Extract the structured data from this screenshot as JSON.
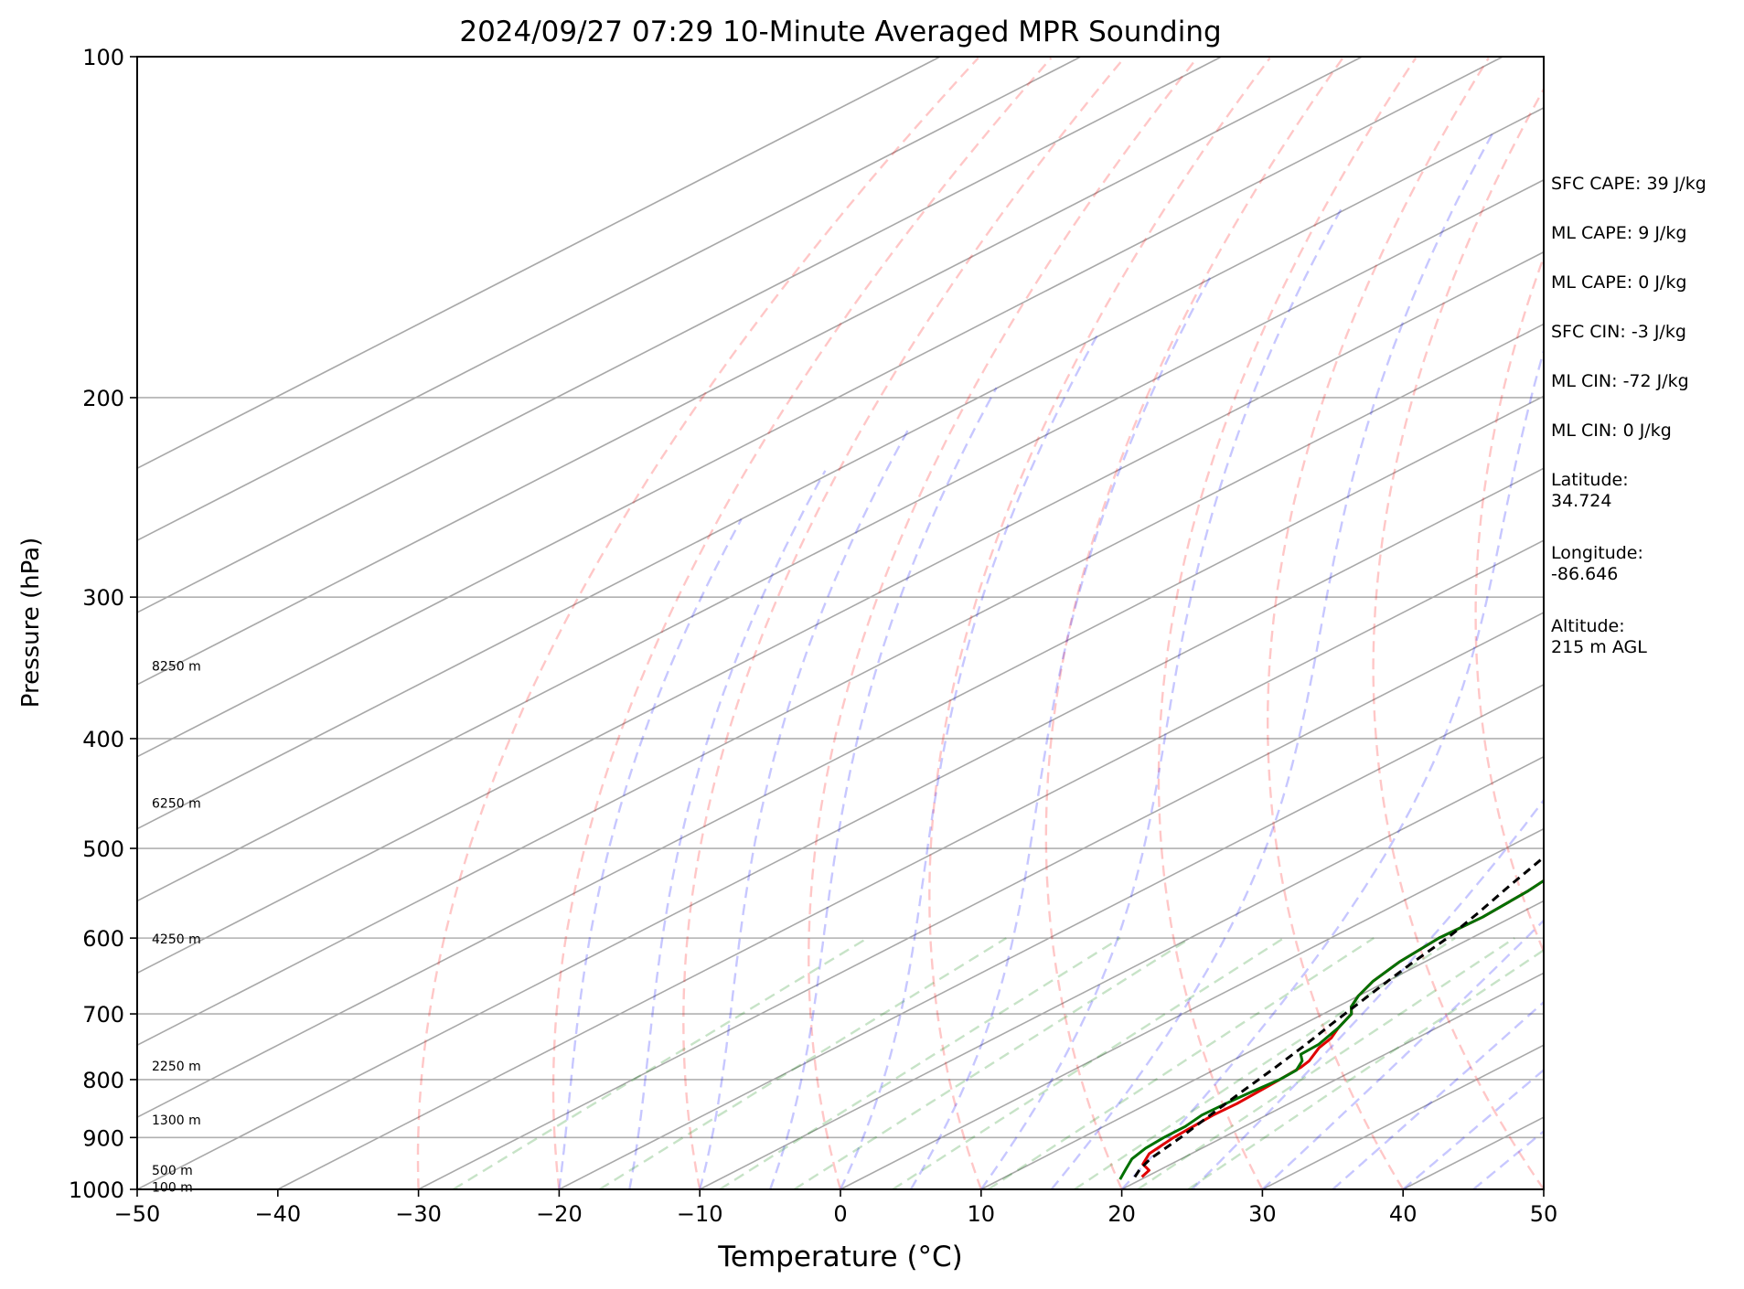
{
  "chart_data": {
    "type": "line",
    "subtype": "skew-t log-p sounding",
    "title": "2024/09/27 07:29 10-Minute Averaged MPR Sounding",
    "xlabel": "Temperature (°C)",
    "ylabel": "Pressure (hPa)",
    "xlim": [
      -50,
      50
    ],
    "ylim": [
      1000,
      100
    ],
    "y_scale": "log",
    "x_ticks": [
      -50,
      -40,
      -30,
      -20,
      -10,
      0,
      10,
      20,
      30,
      40,
      50
    ],
    "x_tick_labels": [
      "−50",
      "−40",
      "−30",
      "−20",
      "−10",
      "0",
      "10",
      "20",
      "30",
      "40",
      "50"
    ],
    "y_ticks": [
      1000,
      900,
      800,
      700,
      600,
      500,
      400,
      300,
      200,
      100
    ],
    "y_tick_labels": [
      "1000",
      "900",
      "800",
      "700",
      "600",
      "500",
      "400",
      "300",
      "200",
      "100"
    ],
    "height_labels": [
      {
        "p": 995,
        "label": "100 m"
      },
      {
        "p": 962,
        "label": "500 m"
      },
      {
        "p": 868,
        "label": "1300 m"
      },
      {
        "p": 778,
        "label": "2250 m"
      },
      {
        "p": 601,
        "label": "4250 m"
      },
      {
        "p": 456,
        "label": "6250 m"
      },
      {
        "p": 345,
        "label": "8250 m"
      }
    ],
    "series": [
      {
        "role": "temperature",
        "color": "#e00000",
        "points": [
          [
            19.7,
            975
          ],
          [
            19.3,
            962
          ],
          [
            18.0,
            950
          ],
          [
            17.0,
            930
          ],
          [
            16.5,
            900
          ],
          [
            16.2,
            860
          ],
          [
            16.3,
            840
          ],
          [
            16.1,
            810
          ],
          [
            15.8,
            780
          ],
          [
            15.5,
            770
          ],
          [
            14.4,
            750
          ],
          [
            13.9,
            735
          ],
          [
            13.0,
            720
          ],
          [
            12.0,
            700
          ],
          [
            11.0,
            690
          ],
          [
            10.0,
            675
          ],
          [
            9.0,
            655
          ],
          [
            8.2,
            630
          ],
          [
            7.7,
            600
          ],
          [
            7.9,
            575
          ],
          [
            7.5,
            545
          ],
          [
            6.8,
            520
          ],
          [
            6.4,
            500
          ],
          [
            6.0,
            490
          ],
          [
            5.3,
            480
          ],
          [
            5.0,
            470
          ],
          [
            4.5,
            460
          ],
          [
            4.0,
            450
          ],
          [
            2.8,
            430
          ],
          [
            1.8,
            415
          ],
          [
            1.0,
            400
          ],
          [
            0.3,
            385
          ],
          [
            -0.5,
            370
          ],
          [
            -2.0,
            360
          ],
          [
            -3.5,
            350
          ],
          [
            -4.6,
            340
          ],
          [
            -5.8,
            330
          ],
          [
            -7.3,
            320
          ],
          [
            -8.5,
            310
          ],
          [
            -9.7,
            300
          ],
          [
            -11.0,
            290
          ],
          [
            -12.2,
            282
          ],
          [
            -13.2,
            274
          ]
        ]
      },
      {
        "role": "dewpoint",
        "color": "#007000",
        "points": [
          [
            18.5,
            980
          ],
          [
            18.0,
            970
          ],
          [
            17.5,
            960
          ],
          [
            16.5,
            940
          ],
          [
            16.0,
            920
          ],
          [
            15.8,
            900
          ],
          [
            15.8,
            880
          ],
          [
            15.4,
            860
          ],
          [
            15.5,
            840
          ],
          [
            15.7,
            820
          ],
          [
            16.0,
            800
          ],
          [
            15.9,
            785
          ],
          [
            15.0,
            770
          ],
          [
            14.0,
            760
          ],
          [
            13.9,
            745
          ],
          [
            13.0,
            720
          ],
          [
            12.0,
            700
          ],
          [
            11.0,
            690
          ],
          [
            10.0,
            675
          ],
          [
            9.0,
            655
          ],
          [
            8.2,
            630
          ],
          [
            7.7,
            600
          ],
          [
            7.9,
            575
          ],
          [
            7.5,
            545
          ],
          [
            6.8,
            520
          ],
          [
            6.4,
            500
          ],
          [
            6.0,
            490
          ],
          [
            4.9,
            480
          ],
          [
            4.0,
            468
          ],
          [
            3.5,
            460
          ],
          [
            2.0,
            450
          ],
          [
            0.5,
            430
          ],
          [
            -0.5,
            415
          ],
          [
            -1.5,
            400
          ],
          [
            -3.3,
            385
          ],
          [
            -4.8,
            370
          ],
          [
            -5.0,
            360
          ],
          [
            -6.5,
            350
          ],
          [
            -8.0,
            340
          ],
          [
            -9.3,
            330
          ],
          [
            -10.6,
            320
          ],
          [
            -12.2,
            310
          ],
          [
            -13.4,
            300
          ],
          [
            -14.8,
            294
          ],
          [
            -15.0,
            286
          ],
          [
            -17.0,
            276
          ]
        ]
      },
      {
        "role": "parcel",
        "color": "#000000",
        "dashed": true,
        "points": [
          [
            19.2,
            975
          ],
          [
            18.5,
            960
          ],
          [
            17.8,
            940
          ],
          [
            17.0,
            900
          ],
          [
            16.0,
            860
          ],
          [
            15.0,
            820
          ],
          [
            14.0,
            780
          ],
          [
            13.0,
            745
          ],
          [
            12.0,
            715
          ],
          [
            11.2,
            690
          ],
          [
            10.2,
            660
          ],
          [
            9.2,
            630
          ],
          [
            8.3,
            600
          ],
          [
            7.0,
            570
          ],
          [
            5.5,
            540
          ],
          [
            4.0,
            510
          ],
          [
            2.3,
            480
          ],
          [
            0.3,
            450
          ],
          [
            -1.9,
            420
          ],
          [
            -4.3,
            390
          ],
          [
            -6.9,
            360
          ],
          [
            -9.9,
            330
          ],
          [
            -13.2,
            300
          ],
          [
            -16.8,
            272
          ]
        ]
      }
    ],
    "background_lines": {
      "isobars_hpa": [
        100,
        200,
        300,
        400,
        500,
        600,
        700,
        800,
        900
      ],
      "isotherms_c_step": 10,
      "dry_adiabats_color": "#ff0000",
      "moist_adiabats_color": "#0000ff",
      "mixing_ratio_lines_color": "#008000"
    }
  },
  "stats": [
    {
      "label": "SFC CAPE",
      "value": "39 J/kg"
    },
    {
      "label": "ML CAPE",
      "value": "9 J/kg"
    },
    {
      "label": "ML CAPE",
      "value": "0 J/kg"
    },
    {
      "label": "SFC CIN",
      "value": "-3 J/kg"
    },
    {
      "label": "ML CIN",
      "value": "-72 J/kg"
    },
    {
      "label": "ML CIN",
      "value": "0 J/kg"
    }
  ],
  "location": {
    "latitude_label": "Latitude:",
    "latitude_value": "34.724",
    "longitude_label": "Longitude:",
    "longitude_value": "-86.646",
    "altitude_label": "Altitude:",
    "altitude_value": "215 m AGL"
  }
}
